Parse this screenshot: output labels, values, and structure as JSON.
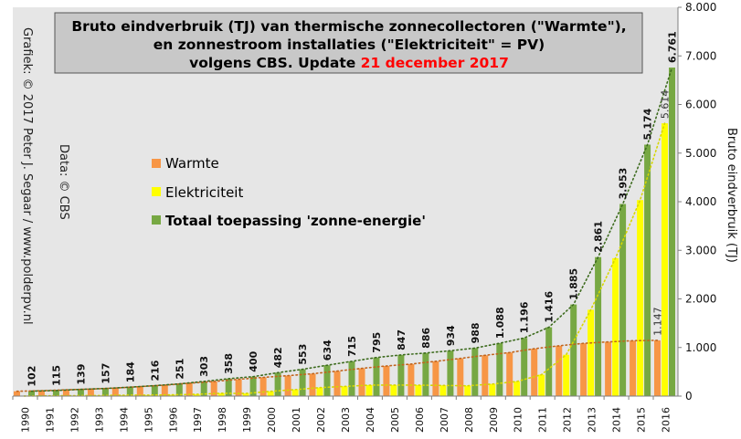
{
  "title": {
    "line1": "Bruto eindverbruik (TJ) van thermische zonnecollectoren (\"Warmte\"),",
    "line2": "en zonnestroom installaties (\"Elektriciteit\" = PV)",
    "line3_prefix": "volgens CBS. Update ",
    "line3_date": "21 december 2017"
  },
  "side_texts": {
    "grafiek": "Grafiek: © 2017 Peter J. Segaar / www.polderpv.nl",
    "data": "Data: © CBS"
  },
  "colors": {
    "warmte": "#f79646",
    "elektriciteit": "#ffff00",
    "totaal": "#77a843",
    "plot_bg": "#e6e6e6",
    "title_bg": "#c8c8c8",
    "date_red": "#ff0000"
  },
  "chart_data": {
    "type": "bar",
    "ylabel": "Bruto eindverbruik (TJ)",
    "ylim": [
      0,
      8000
    ],
    "yticks": [
      "0",
      "1.000",
      "2.000",
      "3.000",
      "4.000",
      "5.000",
      "6.000",
      "7.000",
      "8.000"
    ],
    "y_axis_side": "right",
    "grid": false,
    "legend_position": "left-center",
    "categories": [
      "1990",
      "1991",
      "1992",
      "1993",
      "1994",
      "1995",
      "1996",
      "1997",
      "1998",
      "1999",
      "2000",
      "2001",
      "2002",
      "2003",
      "2004",
      "2005",
      "2006",
      "2007",
      "2008",
      "2009",
      "2010",
      "2011",
      "2012",
      "2013",
      "2014",
      "2015",
      "2016"
    ],
    "series": [
      {
        "name": "Warmte",
        "values": [
          100,
          110,
          130,
          145,
          165,
          195,
          225,
          265,
          300,
          345,
          385,
          420,
          460,
          515,
          570,
          620,
          660,
          715,
          775,
          840,
          895,
          975,
          1035,
          1085,
          1115,
          1140,
          1147
        ]
      },
      {
        "name": "Elektriciteit",
        "values": [
          2,
          5,
          9,
          12,
          19,
          21,
          26,
          38,
          58,
          55,
          97,
          133,
          174,
          200,
          225,
          227,
          226,
          219,
          213,
          248,
          301,
          441,
          850,
          1776,
          2838,
          4034,
          5614
        ]
      },
      {
        "name": "Totaal toepassing 'zonne-energie'",
        "values": [
          102,
          115,
          139,
          157,
          184,
          216,
          251,
          303,
          358,
          400,
          482,
          553,
          634,
          715,
          795,
          847,
          886,
          934,
          988,
          1088,
          1196,
          1416,
          1885,
          2861,
          3953,
          5174,
          6761
        ]
      }
    ],
    "data_labels": [
      "102",
      "115",
      "139",
      "157",
      "184",
      "216",
      "251",
      "303",
      "358",
      "400",
      "482",
      "553",
      "634",
      "715",
      "795",
      "847",
      "886",
      "934",
      "988",
      "1.088",
      "1.196",
      "1.416",
      "1.885",
      "2.861",
      "3.953",
      "5.174",
      "6.761"
    ],
    "extra_labels": [
      {
        "series": "Warmte",
        "category": "2016",
        "text": "1.147"
      },
      {
        "series": "Elektriciteit",
        "category": "2016",
        "text": "5.614"
      }
    ],
    "trendlines": [
      {
        "series": "Warmte",
        "style": "dotted"
      },
      {
        "series": "Elektriciteit",
        "style": "dotted"
      },
      {
        "series": "Totaal toepassing 'zonne-energie'",
        "style": "dotted"
      }
    ]
  }
}
